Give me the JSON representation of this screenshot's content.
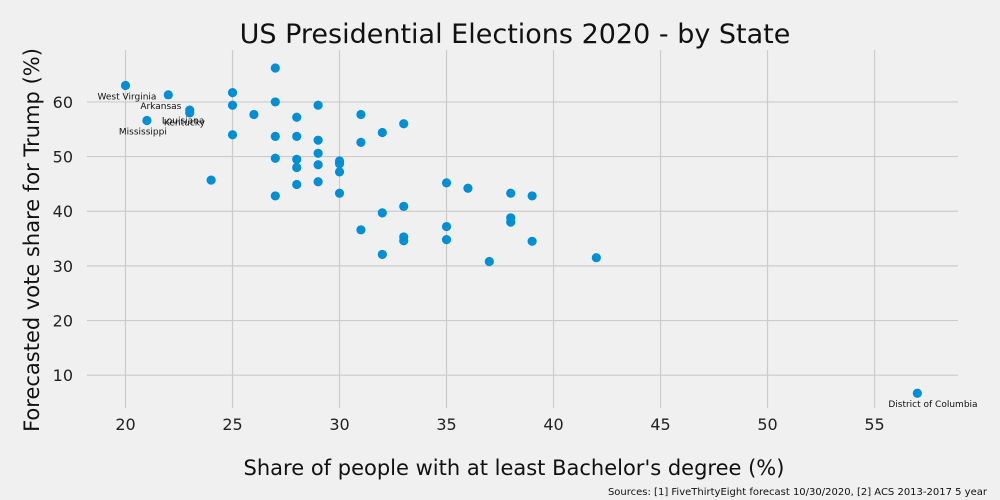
{
  "chart_data": {
    "type": "scatter",
    "title": "US Presidential Elections 2020 - by State",
    "xlabel": "Share of people with at least Bachelor's degree (%)",
    "ylabel": "Forecasted vote share for Trump (%)",
    "xlim": [
      18.2,
      58.9
    ],
    "ylim": [
      4.0,
      69.5
    ],
    "xticks": [
      20,
      25,
      30,
      35,
      40,
      45,
      50,
      55
    ],
    "yticks": [
      10,
      20,
      30,
      40,
      50,
      60
    ],
    "grid": true,
    "marker_color": "#008fd5",
    "background_color": "#f0f0f0",
    "grid_color": "#cbcbcb",
    "series": [
      {
        "points": [
          {
            "x": 20,
            "y": 63.0
          },
          {
            "x": 22,
            "y": 61.3
          },
          {
            "x": 21,
            "y": 56.6
          },
          {
            "x": 23,
            "y": 58.5
          },
          {
            "x": 23,
            "y": 58.0
          },
          {
            "x": 24,
            "y": 45.7
          },
          {
            "x": 25,
            "y": 61.7
          },
          {
            "x": 25,
            "y": 59.4
          },
          {
            "x": 25,
            "y": 54.0
          },
          {
            "x": 26,
            "y": 57.7
          },
          {
            "x": 27,
            "y": 66.2
          },
          {
            "x": 27,
            "y": 60.0
          },
          {
            "x": 27,
            "y": 53.7
          },
          {
            "x": 27,
            "y": 49.7
          },
          {
            "x": 27,
            "y": 42.8
          },
          {
            "x": 28,
            "y": 57.2
          },
          {
            "x": 28,
            "y": 53.7
          },
          {
            "x": 28,
            "y": 49.5
          },
          {
            "x": 28,
            "y": 48.0
          },
          {
            "x": 28,
            "y": 44.9
          },
          {
            "x": 29,
            "y": 59.4
          },
          {
            "x": 29,
            "y": 53.0
          },
          {
            "x": 29,
            "y": 50.6
          },
          {
            "x": 29,
            "y": 48.5
          },
          {
            "x": 29,
            "y": 45.4
          },
          {
            "x": 30,
            "y": 49.2
          },
          {
            "x": 30,
            "y": 48.7
          },
          {
            "x": 30,
            "y": 47.2
          },
          {
            "x": 30,
            "y": 43.3
          },
          {
            "x": 31,
            "y": 57.7
          },
          {
            "x": 31,
            "y": 52.6
          },
          {
            "x": 31,
            "y": 36.6
          },
          {
            "x": 32,
            "y": 54.4
          },
          {
            "x": 32,
            "y": 39.7
          },
          {
            "x": 32,
            "y": 32.1
          },
          {
            "x": 33,
            "y": 56.0
          },
          {
            "x": 33,
            "y": 40.9
          },
          {
            "x": 33,
            "y": 35.3
          },
          {
            "x": 33,
            "y": 34.6
          },
          {
            "x": 35,
            "y": 45.2
          },
          {
            "x": 35,
            "y": 37.2
          },
          {
            "x": 35,
            "y": 34.8
          },
          {
            "x": 36,
            "y": 44.2
          },
          {
            "x": 37,
            "y": 30.8
          },
          {
            "x": 38,
            "y": 43.3
          },
          {
            "x": 38,
            "y": 38.8
          },
          {
            "x": 38,
            "y": 38.0
          },
          {
            "x": 39,
            "y": 42.8
          },
          {
            "x": 39,
            "y": 34.5
          },
          {
            "x": 42,
            "y": 31.5
          },
          {
            "x": 57,
            "y": 6.7
          }
        ]
      }
    ],
    "annotations": [
      {
        "text": "West Virginia",
        "x": 20,
        "y": 63.0
      },
      {
        "text": "Arkansas",
        "x": 22,
        "y": 61.3
      },
      {
        "text": "Louisiana",
        "x": 21,
        "y": 56.6
      },
      {
        "text": "Kentucky",
        "x": 21,
        "y": 56.6
      },
      {
        "text": "Mississippi",
        "x": 21,
        "y": 56.6
      },
      {
        "text": "District of Columbia",
        "x": 57,
        "y": 6.7
      }
    ],
    "source": "Sources: [1] FiveThirtyEight forecast 10/30/2020, [2] ACS 2013-2017 5 year"
  }
}
